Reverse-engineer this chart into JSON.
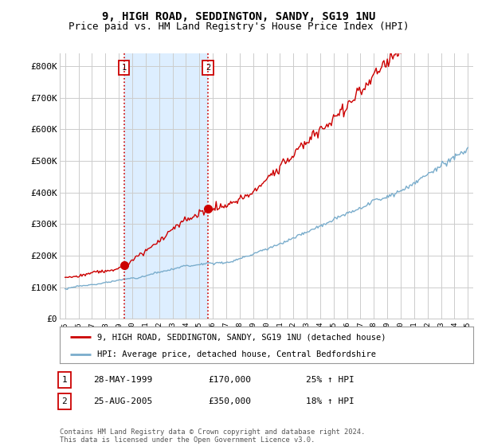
{
  "title": "9, HIGH ROAD, SEDDINGTON, SANDY, SG19 1NU",
  "subtitle": "Price paid vs. HM Land Registry's House Price Index (HPI)",
  "title_fontsize": 10,
  "subtitle_fontsize": 9,
  "ylim": [
    0,
    840000
  ],
  "yticks": [
    0,
    100000,
    200000,
    300000,
    400000,
    500000,
    600000,
    700000,
    800000
  ],
  "ytick_labels": [
    "£0",
    "£100K",
    "£200K",
    "£300K",
    "£400K",
    "£500K",
    "£600K",
    "£700K",
    "£800K"
  ],
  "sale1_year": 1999.38,
  "sale1_price": 170000,
  "sale2_year": 2005.64,
  "sale2_price": 350000,
  "red_line_color": "#cc0000",
  "blue_line_color": "#7aadcc",
  "shade_color": "#ddeeff",
  "vline_color": "#cc0000",
  "grid_color": "#cccccc",
  "background_color": "#ffffff",
  "legend_line1": "9, HIGH ROAD, SEDDINGTON, SANDY, SG19 1NU (detached house)",
  "legend_line2": "HPI: Average price, detached house, Central Bedfordshire",
  "annotation1_label": "1",
  "annotation1_date": "28-MAY-1999",
  "annotation1_price": "£170,000",
  "annotation1_hpi": "25% ↑ HPI",
  "annotation2_label": "2",
  "annotation2_date": "25-AUG-2005",
  "annotation2_price": "£350,000",
  "annotation2_hpi": "18% ↑ HPI",
  "footer": "Contains HM Land Registry data © Crown copyright and database right 2024.\nThis data is licensed under the Open Government Licence v3.0."
}
